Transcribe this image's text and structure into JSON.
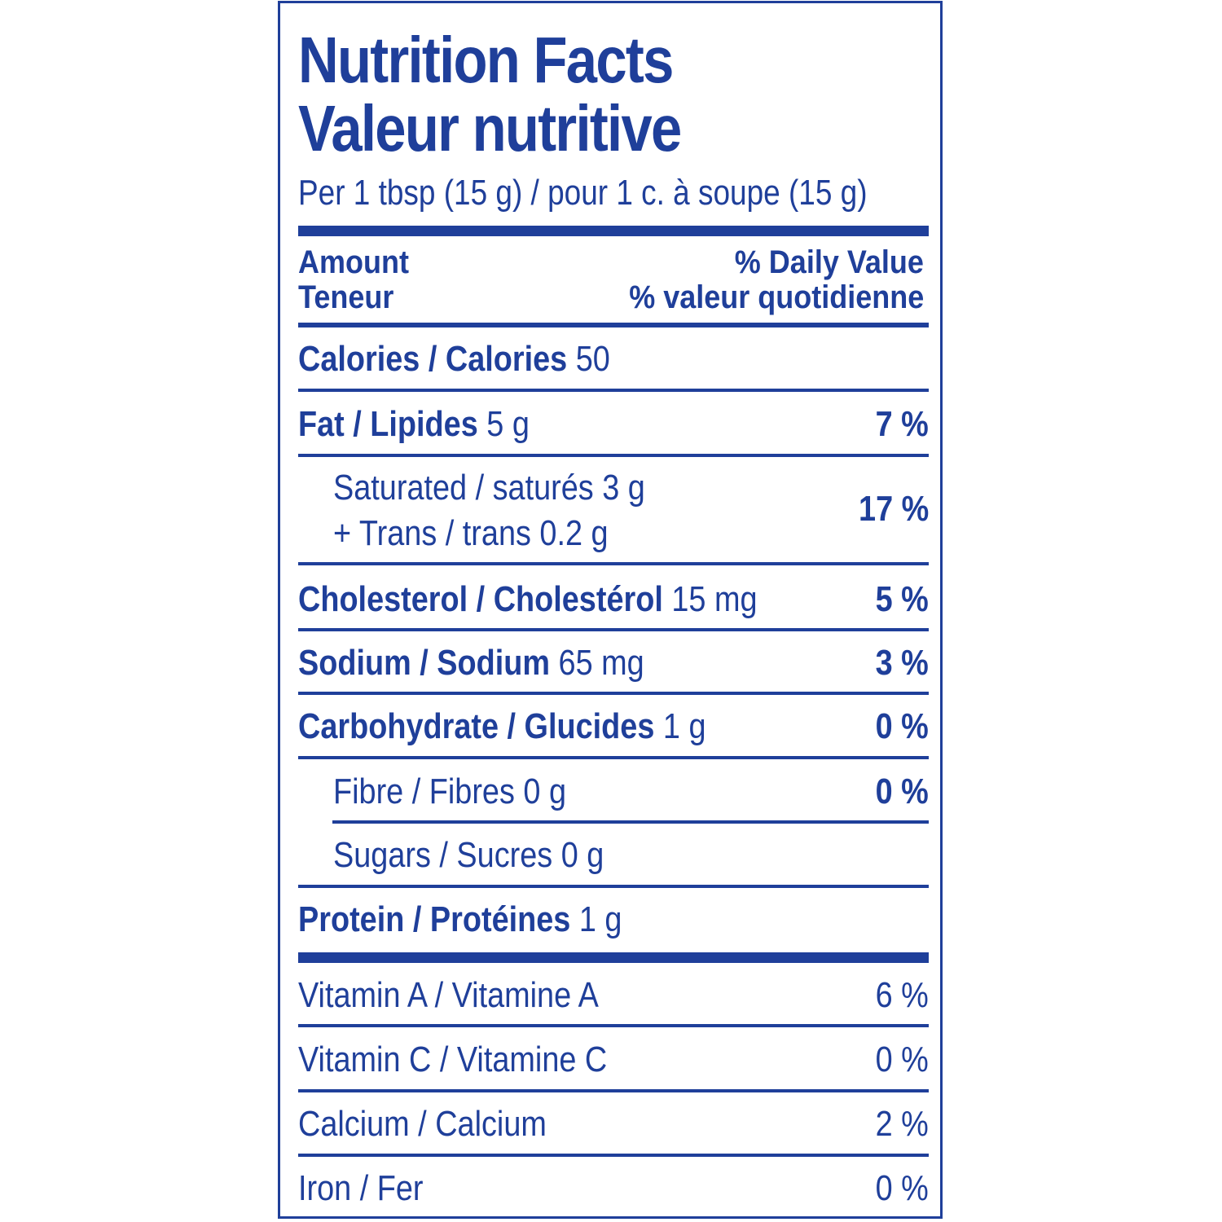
{
  "title_en": "Nutrition Facts",
  "title_fr": "Valeur nutritive",
  "serving": "Per 1 tbsp (15 g) / pour 1 c. à soupe (15 g)",
  "header": {
    "amount_en": "Amount",
    "amount_fr": "Teneur",
    "dv_en": "% Daily Value",
    "dv_fr": "% valeur quotidienne"
  },
  "calories": {
    "label": "Calories / Calories",
    "value": "50"
  },
  "fat": {
    "label": "Fat / Lipides",
    "amount": "5 g",
    "dv": "7 %"
  },
  "saturated": {
    "label": "Saturated / saturés 3 g",
    "trans": "+ Trans / trans 0.2 g",
    "dv": "17 %"
  },
  "cholesterol": {
    "label": "Cholesterol / Cholestérol",
    "amount": "15 mg",
    "dv": "5 %"
  },
  "sodium": {
    "label": "Sodium / Sodium",
    "amount": "65 mg",
    "dv": "3 %"
  },
  "carbohydrate": {
    "label": "Carbohydrate / Glucides",
    "amount": "1 g",
    "dv": "0 %"
  },
  "fibre": {
    "label": "Fibre / Fibres 0 g",
    "dv": "0 %"
  },
  "sugars": {
    "label": "Sugars / Sucres 0 g"
  },
  "protein": {
    "label": "Protein / Protéines",
    "amount": "1 g"
  },
  "vitamin_a": {
    "label": "Vitamin A / Vitamine A",
    "dv": "6 %"
  },
  "vitamin_c": {
    "label": "Vitamin C / Vitamine C",
    "dv": "0 %"
  },
  "calcium": {
    "label": "Calcium / Calcium",
    "dv": "2 %"
  },
  "iron": {
    "label": "Iron / Fer",
    "dv": "0 %"
  },
  "colors": {
    "ink": "#1f3f9a",
    "background": "#ffffff"
  }
}
